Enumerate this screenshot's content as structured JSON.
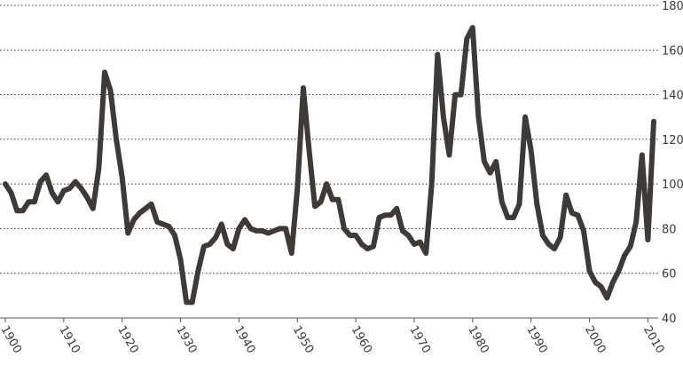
{
  "chart_data": {
    "type": "line",
    "title": "",
    "xlabel": "",
    "ylabel": "",
    "xlim": [
      1900,
      2011
    ],
    "ylim": [
      40,
      180
    ],
    "grid": "horizontal dotted",
    "y_ticks": [
      40,
      60,
      80,
      100,
      120,
      140,
      160,
      180
    ],
    "y_tick_labels": [
      "40",
      "60",
      "80",
      "100",
      "120",
      "140",
      "160",
      "180"
    ],
    "x_ticks": [
      1900,
      1910,
      1920,
      1930,
      1940,
      1950,
      1960,
      1970,
      1980,
      1990,
      2000,
      2010
    ],
    "x_tick_labels": [
      "1900",
      "1910",
      "1920",
      "1930",
      "1940",
      "1950",
      "1960",
      "1970",
      "1980",
      "1990",
      "2000",
      "2010"
    ],
    "colors": {
      "line": "#3d3a38",
      "grid": "#444444",
      "axis": "#555555",
      "text": "#3a3a3a"
    },
    "series": [
      {
        "x": [
          1900,
          1901,
          1902,
          1903,
          1904,
          1905,
          1906,
          1907,
          1908,
          1909,
          1910,
          1911,
          1912,
          1913,
          1914,
          1915,
          1916,
          1917,
          1918,
          1919,
          1920,
          1921,
          1922,
          1923,
          1924,
          1925,
          1926,
          1927,
          1928,
          1929,
          1930,
          1931,
          1932,
          1933,
          1934,
          1935,
          1936,
          1937,
          1938,
          1939,
          1940,
          1941,
          1942,
          1943,
          1944,
          1945,
          1946,
          1947,
          1948,
          1949,
          1950,
          1951,
          1952,
          1953,
          1954,
          1955,
          1956,
          1957,
          1958,
          1959,
          1960,
          1961,
          1962,
          1963,
          1964,
          1965,
          1966,
          1967,
          1968,
          1969,
          1970,
          1971,
          1972,
          1973,
          1974,
          1975,
          1976,
          1977,
          1978,
          1979,
          1980,
          1981,
          1982,
          1983,
          1984,
          1985,
          1986,
          1987,
          1988,
          1989,
          1990,
          1991,
          1992,
          1993,
          1994,
          1995,
          1996,
          1997,
          1998,
          1999,
          2000,
          2001,
          2002,
          2003,
          2004,
          2005,
          2006,
          2007,
          2008,
          2009,
          2010,
          2011
        ],
        "values": [
          100,
          96,
          88,
          88,
          92,
          92,
          101,
          104,
          96,
          92,
          97,
          98,
          101,
          98,
          94,
          89,
          107,
          150,
          142,
          120,
          103,
          78,
          84,
          87,
          89,
          91,
          83,
          82,
          81,
          77,
          66,
          47,
          47,
          61,
          72,
          73,
          76,
          82,
          73,
          71,
          80,
          84,
          80,
          79,
          79,
          78,
          79,
          80,
          80,
          69,
          98,
          143,
          115,
          90,
          92,
          100,
          93,
          93,
          80,
          77,
          77,
          73,
          71,
          72,
          85,
          86,
          86,
          89,
          79,
          77,
          73,
          74,
          69,
          100,
          158,
          130,
          113,
          140,
          140,
          165,
          170,
          130,
          110,
          105,
          110,
          92,
          85,
          85,
          91,
          130,
          115,
          91,
          77,
          73,
          71,
          76,
          95,
          87,
          86,
          79,
          61,
          56,
          54,
          49,
          56,
          61,
          68,
          72,
          83,
          113,
          75,
          128
        ]
      }
    ]
  }
}
